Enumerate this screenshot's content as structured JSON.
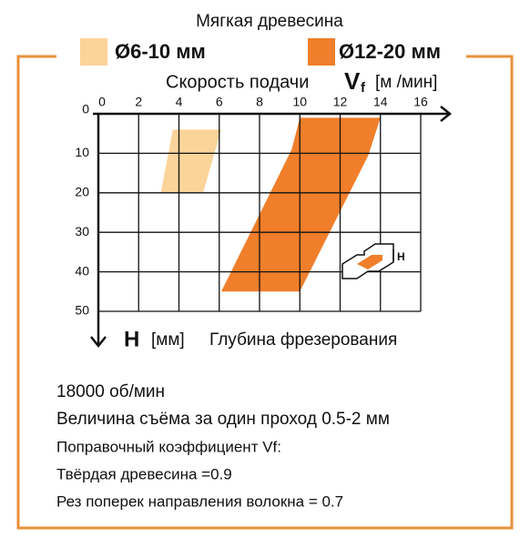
{
  "chart_data": {
    "type": "area",
    "title": "Мягкая древесина",
    "x_label": {
      "text": "Скорость подачи",
      "symbol": "V",
      "subscript": "f",
      "unit": "[м /мин]"
    },
    "y_label": {
      "symbol": "H",
      "unit": "[мм]",
      "text": "Глубина фрезерования"
    },
    "xlim": [
      0,
      16
    ],
    "xticks": [
      0,
      2,
      4,
      6,
      8,
      10,
      12,
      14,
      16
    ],
    "ylim": [
      0,
      50
    ],
    "yticks": [
      0,
      10,
      20,
      30,
      40,
      50
    ],
    "grid": true,
    "series": [
      {
        "name": "Ø6-10 мм",
        "color": "#fbd49a",
        "x": [
          3.7,
          6.1,
          5.2,
          3.1
        ],
        "values": [
          4,
          4,
          20,
          20
        ]
      },
      {
        "name": "Ø12-20 мм",
        "color": "#f07e2a",
        "x": [
          10,
          14,
          13.4,
          10,
          6.1,
          9.6
        ],
        "values": [
          1,
          1,
          10.5,
          45,
          45,
          9
        ]
      }
    ],
    "icon_label": "H"
  },
  "notes": [
    "18000 об/мин",
    "Величина съёма за один проход 0.5-2 мм",
    "Поправочный коэффициент Vf:",
    "Твёрдая древесина =0.9",
    "Рез поперек направления волокна = 0.7"
  ]
}
